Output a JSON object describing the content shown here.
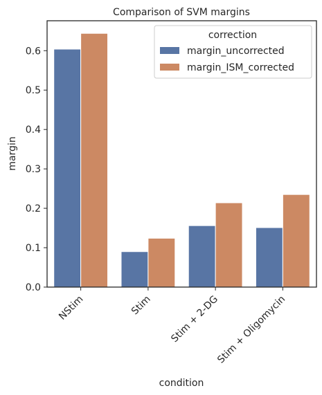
{
  "chart_data": {
    "type": "bar",
    "title": "Comparison of SVM margins",
    "xlabel": "condition",
    "ylabel": "margin",
    "categories": [
      "NStim",
      "Stim",
      "Stim + 2-DG",
      "Stim + Oligomycin"
    ],
    "series": [
      {
        "name": "margin_uncorrected",
        "color": "#5875a4",
        "values": [
          0.604,
          0.09,
          0.156,
          0.151
        ]
      },
      {
        "name": "margin_ISM_corrected",
        "color": "#cc8963",
        "values": [
          0.644,
          0.124,
          0.214,
          0.235
        ]
      }
    ],
    "ylim": [
      0,
      0.676
    ],
    "yticks": [
      0.0,
      0.1,
      0.2,
      0.3,
      0.4,
      0.5,
      0.6
    ],
    "ytick_labels": [
      "0.0",
      "0.1",
      "0.2",
      "0.3",
      "0.4",
      "0.5",
      "0.6"
    ],
    "grid": false,
    "legend": {
      "title": "correction",
      "placement": "top-right"
    }
  }
}
